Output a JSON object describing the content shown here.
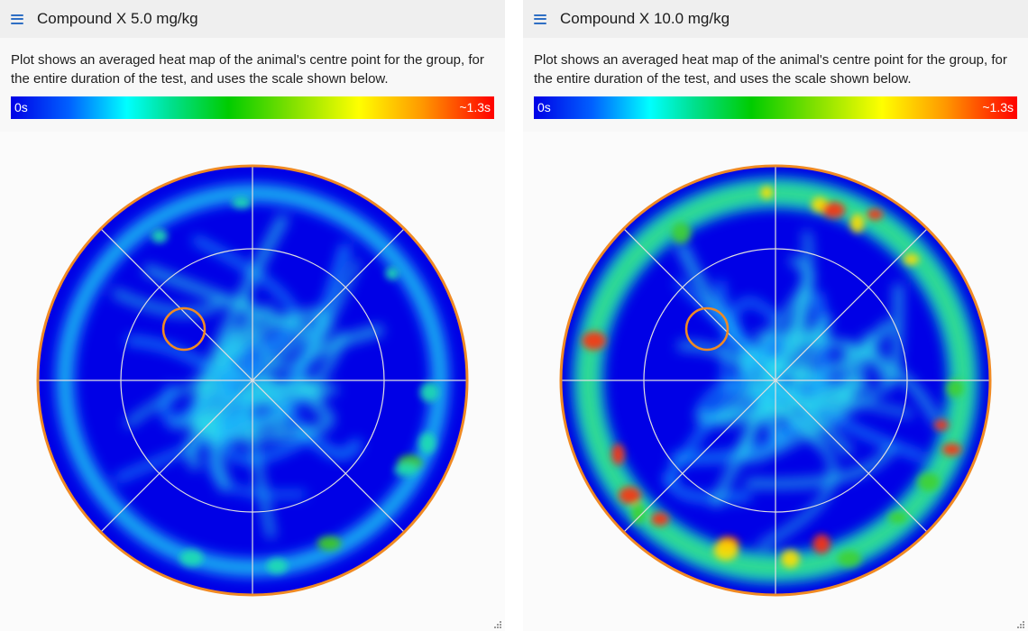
{
  "panels": [
    {
      "title": "Compound X 5.0 mg/kg",
      "description": "Plot shows an averaged heat map of the animal's centre point for the group, for the entire duration of the test, and uses the scale shown below.",
      "scale": {
        "min_label": "0s",
        "max_label": "~1.3s"
      },
      "menu_icon": "hamburger-menu-icon",
      "hotspot_level": "low"
    },
    {
      "title": "Compound X 10.0 mg/kg",
      "description": "Plot shows an averaged heat map of the animal's centre point for the group, for the entire duration of the test, and uses the scale shown below.",
      "scale": {
        "min_label": "0s",
        "max_label": "~1.3s"
      },
      "menu_icon": "hamburger-menu-icon",
      "hotspot_level": "high"
    }
  ],
  "colors": {
    "arena_border": "#f08a24",
    "platform_ring": "#f08a24",
    "heat_base": "#0000e6",
    "grid_lines": "#e0e0e0"
  }
}
